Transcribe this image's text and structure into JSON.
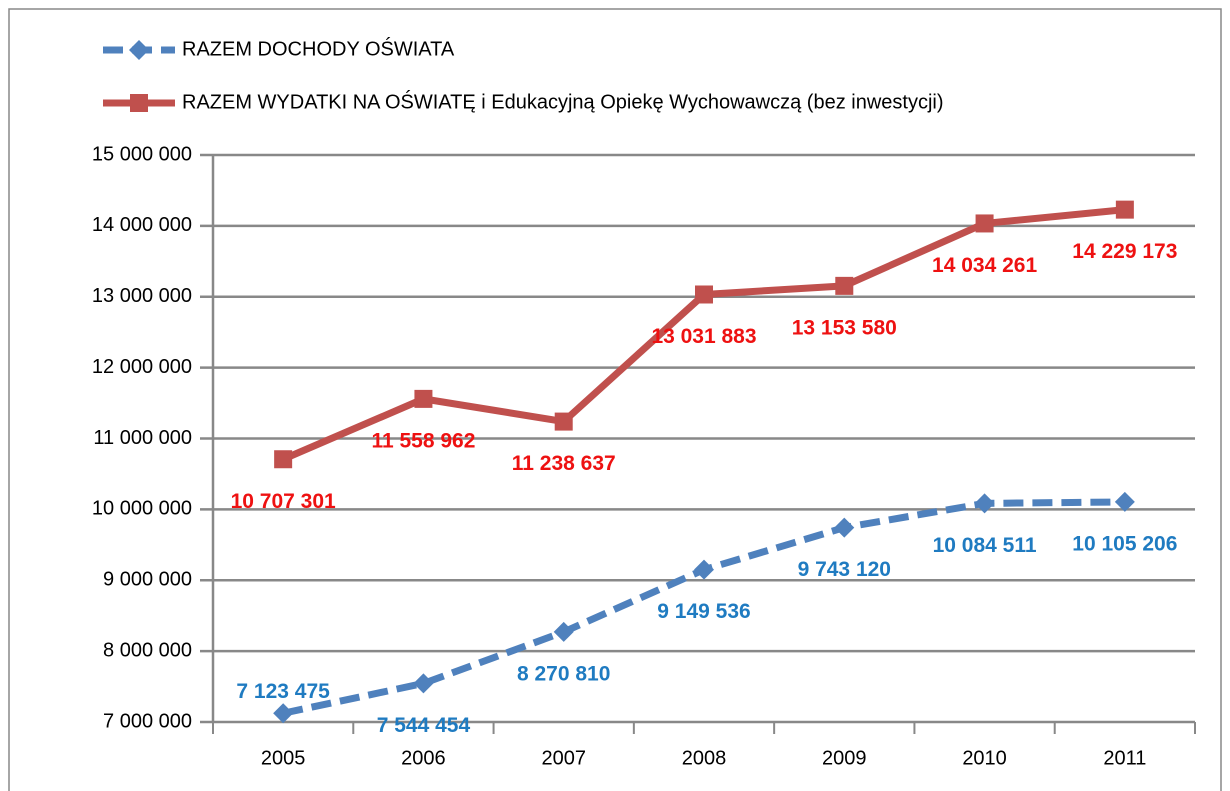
{
  "chart_data": {
    "type": "line",
    "categories": [
      "2005",
      "2006",
      "2007",
      "2008",
      "2009",
      "2010",
      "2011"
    ],
    "series": [
      {
        "name": "RAZEM DOCHODY OŚWIATA",
        "color": "#4f81bd",
        "label_color": "#1f7bc1",
        "marker": "diamond",
        "dashed": true,
        "values": [
          7123475,
          7544454,
          8270810,
          9149536,
          9743120,
          10084511,
          10105206
        ],
        "value_labels": [
          "7 123 475",
          "7 544 454",
          "8 270 810",
          "9 149 536",
          "9 743 120",
          "10 084 511",
          "10 105 206"
        ]
      },
      {
        "name": "RAZEM WYDATKI NA OŚWIATĘ i Edukacyjną Opiekę Wychowawczą (bez inwestycji)",
        "color": "#c0504d",
        "label_color": "#ee1111",
        "marker": "square",
        "dashed": false,
        "values": [
          10707301,
          11558962,
          11238637,
          13031883,
          13153580,
          14034261,
          14229173
        ],
        "value_labels": [
          "10 707 301",
          "11 558 962",
          "11 238 637",
          "13 031 883",
          "13 153 580",
          "14 034 261",
          "14 229 173"
        ]
      }
    ],
    "ylim": [
      7000000,
      15000000
    ],
    "yticks": [
      {
        "value": 7000000,
        "label": "7 000 000"
      },
      {
        "value": 8000000,
        "label": "8 000 000"
      },
      {
        "value": 9000000,
        "label": "9 000 000"
      },
      {
        "value": 10000000,
        "label": "10 000 000"
      },
      {
        "value": 11000000,
        "label": "11 000 000"
      },
      {
        "value": 12000000,
        "label": "12 000 000"
      },
      {
        "value": 13000000,
        "label": "13 000 000"
      },
      {
        "value": 14000000,
        "label": "14 000 000"
      },
      {
        "value": 15000000,
        "label": "15 000 000"
      }
    ],
    "grid": true,
    "legend": "top"
  }
}
